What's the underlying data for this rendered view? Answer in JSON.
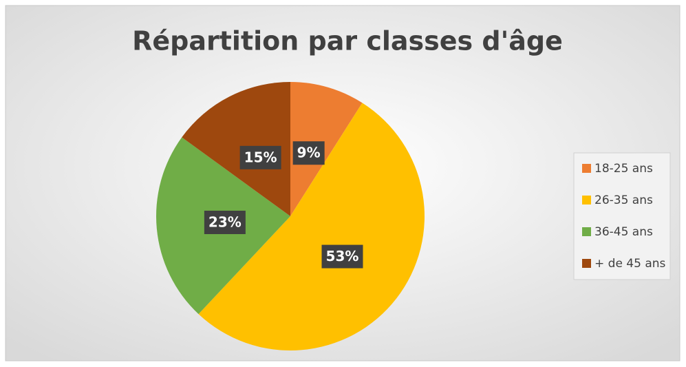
{
  "chart_data": {
    "type": "pie",
    "title": "Répartition par classes d'âge",
    "categories": [
      "18-25 ans",
      "26-35 ans",
      "36-45 ans",
      "+ de 45 ans"
    ],
    "values": [
      9,
      53,
      23,
      15
    ],
    "value_labels": [
      "9%",
      "53%",
      "23%",
      "15%"
    ],
    "colors": [
      "#ED7D31",
      "#FFC000",
      "#70AD47",
      "#9E480E"
    ],
    "legend": "right"
  }
}
